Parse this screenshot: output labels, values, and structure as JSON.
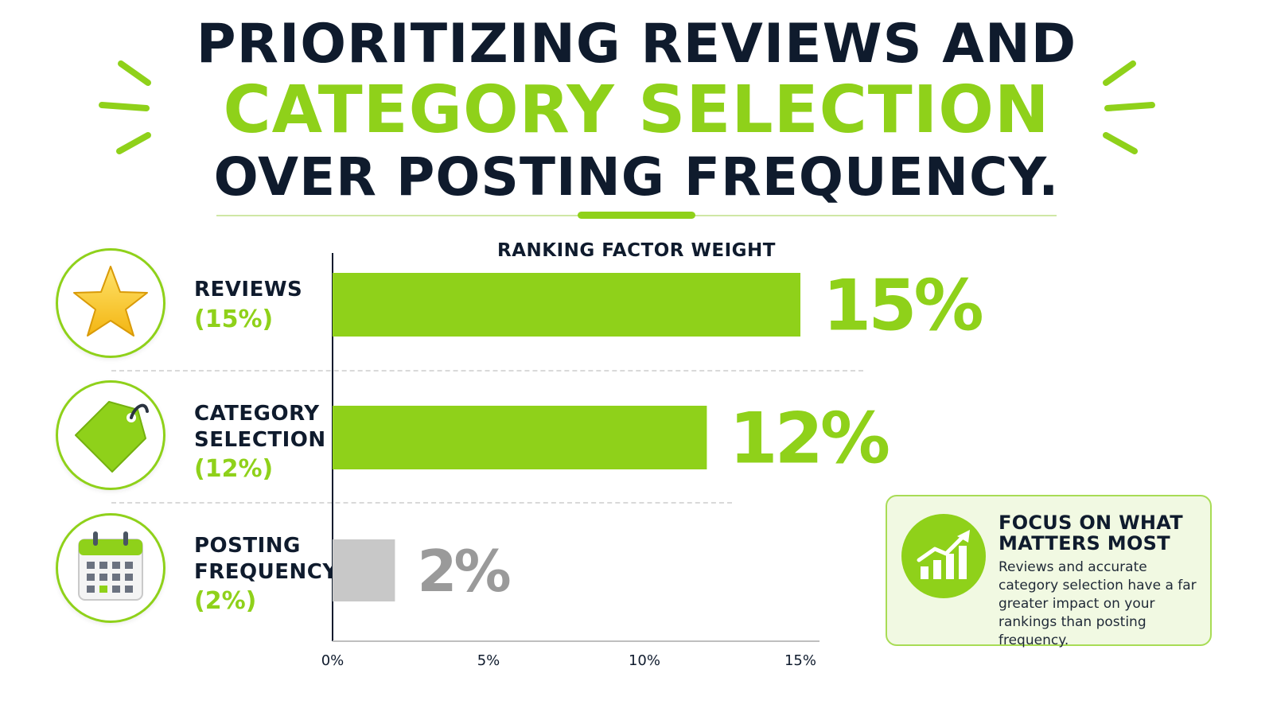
{
  "title": {
    "line1": "PRIORITIZING REVIEWS AND",
    "line2": "CATEGORY SELECTION",
    "line3": "OVER POSTING FREQUENCY."
  },
  "colors": {
    "accent": "#8fd11a",
    "dark": "#0f1b2d",
    "muted_bar": "#c8c8c8",
    "muted_text": "#9a9a9a"
  },
  "factors": [
    {
      "name": "REVIEWS",
      "pct_label": "(15%)",
      "icon": "star-icon"
    },
    {
      "name": "CATEGORY SELECTION",
      "pct_label": "(12%)",
      "icon": "tag-icon"
    },
    {
      "name": "POSTING FREQUENCY",
      "pct_label": "(2%)",
      "icon": "calendar-icon"
    }
  ],
  "chart_data": {
    "type": "bar",
    "orientation": "horizontal",
    "title": "RANKING FACTOR WEIGHT",
    "categories": [
      "REVIEWS",
      "CATEGORY SELECTION",
      "POSTING FREQUENCY"
    ],
    "values": [
      15,
      12,
      2
    ],
    "value_labels": [
      "15%",
      "12%",
      "2%"
    ],
    "bar_colors": [
      "#8fd11a",
      "#8fd11a",
      "#c8c8c8"
    ],
    "xticks": [
      "0%",
      "5%",
      "10%",
      "15%"
    ],
    "xtick_values": [
      0,
      5,
      10,
      15
    ],
    "xlim": [
      0,
      16
    ],
    "xlabel": "",
    "ylabel": "",
    "grid": false
  },
  "callout": {
    "title": "FOCUS ON WHAT MATTERS MOST",
    "text": "Reviews and accurate category selection have a far greater impact on your rankings than posting frequency.",
    "icon": "growth-chart-icon"
  }
}
